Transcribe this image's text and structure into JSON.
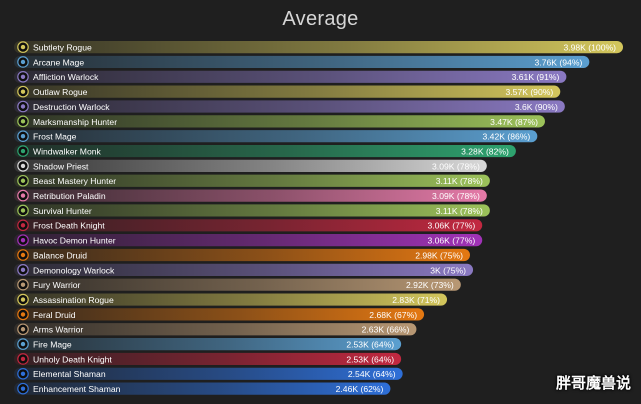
{
  "chart_data": {
    "type": "bar",
    "orientation": "horizontal",
    "title": "Average",
    "xlabel": "",
    "ylabel": "",
    "xlim": [
      0,
      3.98
    ],
    "grid": false,
    "legend": "none",
    "bars": [
      {
        "name": "Subtlety Rogue",
        "value": 3.98,
        "label": "3.98K (100%)",
        "color": "#d3c65c",
        "icon": "dagger-icon"
      },
      {
        "name": "Arcane Mage",
        "value": 3.76,
        "label": "3.76K (94%)",
        "color": "#5b9fd0",
        "icon": "arcane-icon"
      },
      {
        "name": "Affliction Warlock",
        "value": 3.61,
        "label": "3.61K (91%)",
        "color": "#8a79c2",
        "icon": "skull-icon"
      },
      {
        "name": "Outlaw Rogue",
        "value": 3.57,
        "label": "3.57K (90%)",
        "color": "#d3c65c",
        "icon": "sword-icon"
      },
      {
        "name": "Destruction Warlock",
        "value": 3.6,
        "label": "3.6K (90%)",
        "color": "#8a79c2",
        "icon": "fire-icon"
      },
      {
        "name": "Marksmanship Hunter",
        "value": 3.47,
        "label": "3.47K (87%)",
        "color": "#9cc25a",
        "icon": "arrow-icon"
      },
      {
        "name": "Frost Mage",
        "value": 3.42,
        "label": "3.42K (86%)",
        "color": "#5b9fd0",
        "icon": "snowflake-icon"
      },
      {
        "name": "Windwalker Monk",
        "value": 3.28,
        "label": "3.28K (82%)",
        "color": "#2ea36f",
        "icon": "fist-icon"
      },
      {
        "name": "Shadow Priest",
        "value": 3.09,
        "label": "3.09K (78%)",
        "color": "#d8d8d8",
        "icon": "shadow-icon"
      },
      {
        "name": "Beast Mastery Hunter",
        "value": 3.11,
        "label": "3.11K (78%)",
        "color": "#9cc25a",
        "icon": "beast-icon"
      },
      {
        "name": "Retribution Paladin",
        "value": 3.09,
        "label": "3.09K (78%)",
        "color": "#e57aa8",
        "icon": "hammer-icon"
      },
      {
        "name": "Survival Hunter",
        "value": 3.11,
        "label": "3.11K (78%)",
        "color": "#9cc25a",
        "icon": "spear-icon"
      },
      {
        "name": "Frost Death Knight",
        "value": 3.06,
        "label": "3.06K (77%)",
        "color": "#c22840",
        "icon": "frost-rune-icon"
      },
      {
        "name": "Havoc Demon Hunter",
        "value": 3.06,
        "label": "3.06K (77%)",
        "color": "#a132b8",
        "icon": "demon-icon"
      },
      {
        "name": "Balance Druid",
        "value": 2.98,
        "label": "2.98K (75%)",
        "color": "#e47812",
        "icon": "moon-icon"
      },
      {
        "name": "Demonology Warlock",
        "value": 3.0,
        "label": "3K (75%)",
        "color": "#8a79c2",
        "icon": "imp-icon"
      },
      {
        "name": "Fury Warrior",
        "value": 2.92,
        "label": "2.92K (73%)",
        "color": "#b89874",
        "icon": "axe-icon"
      },
      {
        "name": "Assassination Rogue",
        "value": 2.83,
        "label": "2.83K (71%)",
        "color": "#d3c65c",
        "icon": "poison-icon"
      },
      {
        "name": "Feral Druid",
        "value": 2.68,
        "label": "2.68K (67%)",
        "color": "#e47812",
        "icon": "claw-icon"
      },
      {
        "name": "Arms Warrior",
        "value": 2.63,
        "label": "2.63K (66%)",
        "color": "#b89874",
        "icon": "sword-icon"
      },
      {
        "name": "Fire Mage",
        "value": 2.53,
        "label": "2.53K (64%)",
        "color": "#5b9fd0",
        "icon": "fireball-icon"
      },
      {
        "name": "Unholy Death Knight",
        "value": 2.53,
        "label": "2.53K (64%)",
        "color": "#c22840",
        "icon": "unholy-icon"
      },
      {
        "name": "Elemental Shaman",
        "value": 2.54,
        "label": "2.54K (64%)",
        "color": "#2e6fd8",
        "icon": "lightning-icon"
      },
      {
        "name": "Enhancement Shaman",
        "value": 2.46,
        "label": "2.46K (62%)",
        "color": "#2e6fd8",
        "icon": "totem-icon"
      }
    ]
  },
  "watermark": "胖哥魔兽说"
}
